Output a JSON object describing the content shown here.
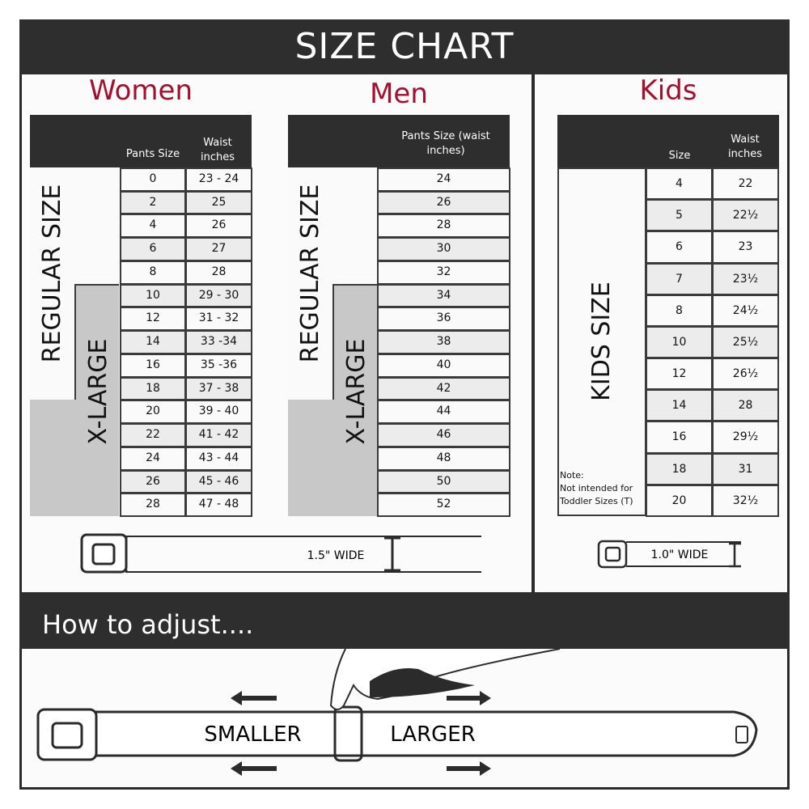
{
  "title": "SIZE CHART",
  "women": {
    "title": "Women",
    "col1": "Pants Size",
    "col2": "Waist inches",
    "regular_label": "REGULAR SIZE",
    "xlarge_label": "X-LARGE",
    "rows": [
      [
        "0",
        "23 - 24"
      ],
      [
        "2",
        "25"
      ],
      [
        "4",
        "26"
      ],
      [
        "6",
        "27"
      ],
      [
        "8",
        "28"
      ],
      [
        "10",
        "29 - 30"
      ],
      [
        "12",
        "31 - 32"
      ],
      [
        "14",
        "33 -34"
      ],
      [
        "16",
        "35 -36"
      ],
      [
        "18",
        "37 - 38"
      ],
      [
        "20",
        "39 - 40"
      ],
      [
        "22",
        "41 - 42"
      ],
      [
        "24",
        "43 - 44"
      ],
      [
        "26",
        "45 - 46"
      ],
      [
        "28",
        "47 - 48"
      ]
    ]
  },
  "men": {
    "title": "Men",
    "col1": "Pants Size (waist inches)",
    "regular_label": "REGULAR SIZE",
    "xlarge_label": "X-LARGE",
    "rows": [
      "24",
      "26",
      "28",
      "30",
      "32",
      "34",
      "36",
      "38",
      "40",
      "42",
      "44",
      "46",
      "48",
      "50",
      "52"
    ]
  },
  "kids": {
    "title": "Kids",
    "col1": "Size",
    "col2": "Waist inches",
    "label": "KIDS SIZE",
    "note_title": "Note:",
    "note": "Not intended for Toddler Sizes (T)",
    "rows": [
      [
        "4",
        "22"
      ],
      [
        "5",
        "22½"
      ],
      [
        "6",
        "23"
      ],
      [
        "7",
        "23½"
      ],
      [
        "8",
        "24½"
      ],
      [
        "10",
        "25½"
      ],
      [
        "12",
        "26½"
      ],
      [
        "14",
        "28"
      ],
      [
        "16",
        "29½"
      ],
      [
        "18",
        "31"
      ],
      [
        "20",
        "32½"
      ]
    ]
  },
  "adult_belt_width": "1.5\" WIDE",
  "kids_belt_width": "1.0\" WIDE",
  "adjust": {
    "title": "How to adjust....",
    "smaller": "SMALLER",
    "larger": "LARGER"
  },
  "colors": {
    "accent": "#a1102e",
    "dark": "#2e2e2e",
    "xlarge_gray": "#c8c8c8"
  }
}
